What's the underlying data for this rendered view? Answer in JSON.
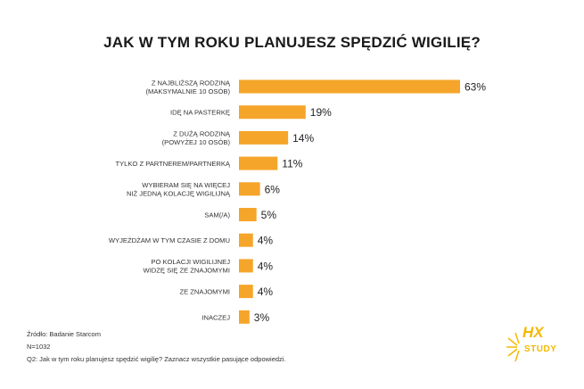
{
  "chart_data": {
    "type": "bar",
    "orientation": "horizontal",
    "title": "JAK W TYM ROKU PLANUJESZ SPĘDZIĆ WIGILIĘ?",
    "categories": [
      [
        "Z NAJBLIŻSZĄ RODZINĄ",
        "(MAKSYMALNIE 10 OSÓB)"
      ],
      [
        "IDĘ NA PASTERKĘ"
      ],
      [
        "Z DUŻĄ RODZINĄ",
        "(POWYŻEJ 10 OSÓB)"
      ],
      [
        "TYLKO Z PARTNEREM/PARTNERKĄ"
      ],
      [
        "WYBIERAM SIĘ NA WIĘCEJ",
        "NIŻ JEDNĄ KOLACJĘ WIGILIJNĄ"
      ],
      [
        "SAM(/A)"
      ],
      [
        "WYJEŻDŻAM W TYM CZASIE Z DOMU"
      ],
      [
        "PO KOLACJI WIGILIJNEJ",
        "WIDZĘ SIĘ ZE ZNAJOMYMI"
      ],
      [
        "ZE ZNAJOMYMI"
      ],
      [
        "INACZEJ"
      ]
    ],
    "values": [
      63,
      19,
      14,
      11,
      6,
      5,
      4,
      4,
      4,
      3
    ],
    "value_labels": [
      "63%",
      "19%",
      "14%",
      "11%",
      "6%",
      "5%",
      "4%",
      "4%",
      "4%",
      "3%"
    ],
    "unit": "%",
    "xlim": [
      0,
      63
    ],
    "bar_color": "#F5A52A",
    "grid": false,
    "legend": "none"
  },
  "footer": {
    "source": "Źródło: Badanie Starcom",
    "n": "N=1032",
    "question": "Q2: Jak w tym roku planujesz spędzić wigilię? Zaznacz wszystkie pasujące odpowiedzi."
  },
  "logo": {
    "main": "HX",
    "sub": "STUDY",
    "color": "#F5B800"
  }
}
